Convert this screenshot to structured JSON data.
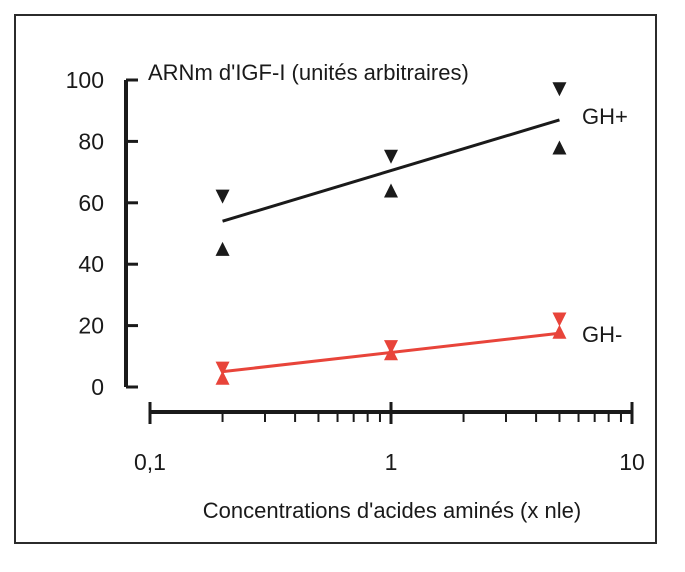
{
  "chart_data": {
    "type": "scatter",
    "title": "ARNm d'IGF-I (unités arbitraires)",
    "xlabel": "Concentrations d'acides aminés (x nle)",
    "ylabel": "",
    "x_scale": "log",
    "xlim": [
      0.1,
      10
    ],
    "ylim": [
      0,
      100
    ],
    "x_tick_labels": [
      "0,1",
      "1",
      "10"
    ],
    "y_tick_labels": [
      "0",
      "20",
      "40",
      "60",
      "80",
      "100"
    ],
    "y_ticks": [
      0,
      20,
      40,
      60,
      80,
      100
    ],
    "x_ticks": [
      0.1,
      1,
      10
    ],
    "grid": false,
    "legend": "none",
    "series": [
      {
        "name": "GH+",
        "color": "#1a1a1a",
        "points": [
          {
            "x": 0.2,
            "y": 62,
            "marker": "triangle-down"
          },
          {
            "x": 0.2,
            "y": 45,
            "marker": "triangle-up"
          },
          {
            "x": 1,
            "y": 75,
            "marker": "triangle-down"
          },
          {
            "x": 1,
            "y": 64,
            "marker": "triangle-up"
          },
          {
            "x": 5,
            "y": 97,
            "marker": "triangle-down"
          },
          {
            "x": 5,
            "y": 78,
            "marker": "triangle-up"
          }
        ],
        "fit": [
          {
            "x": 0.2,
            "y": 54
          },
          {
            "x": 5,
            "y": 87
          }
        ]
      },
      {
        "name": "GH-",
        "color": "#e8443a",
        "points": [
          {
            "x": 0.2,
            "y": 6,
            "marker": "triangle-down"
          },
          {
            "x": 0.2,
            "y": 3,
            "marker": "triangle-up"
          },
          {
            "x": 1,
            "y": 13,
            "marker": "triangle-down"
          },
          {
            "x": 1,
            "y": 11,
            "marker": "triangle-up"
          },
          {
            "x": 5,
            "y": 22,
            "marker": "triangle-down"
          },
          {
            "x": 5,
            "y": 18,
            "marker": "triangle-up"
          }
        ],
        "fit": [
          {
            "x": 0.2,
            "y": 5
          },
          {
            "x": 5,
            "y": 17.5
          }
        ]
      }
    ]
  }
}
